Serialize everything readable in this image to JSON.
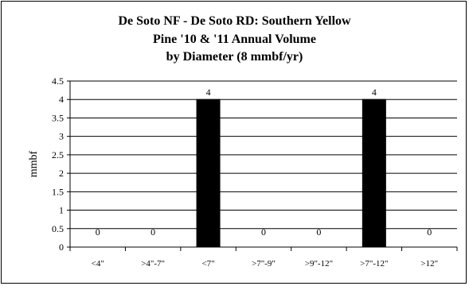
{
  "chart_data": {
    "type": "bar",
    "title_lines": [
      "De Soto NF - De Soto RD: Southern Yellow",
      "Pine '10 & '11 Annual Volume",
      "by Diameter (8 mmbf/yr)"
    ],
    "xlabel": "",
    "ylabel": "mmbf",
    "categories": [
      "<4\"",
      ">4\"-7\"",
      "<7\"",
      ">7\"-9\"",
      ">9\"-12\"",
      ">7\"-12\"",
      ">12\""
    ],
    "values": [
      0,
      0,
      4,
      0,
      0,
      4,
      0
    ],
    "data_labels": [
      "0",
      "0",
      "4",
      "0",
      "0",
      "4",
      "0"
    ],
    "ylim": [
      0,
      4.5
    ],
    "yticks": [
      0,
      0.5,
      1,
      1.5,
      2,
      2.5,
      3,
      3.5,
      4,
      4.5
    ],
    "ytick_labels": [
      "0",
      "0.5",
      "1",
      "1.5",
      "2",
      "2.5",
      "3",
      "3.5",
      "4",
      "4.5"
    ],
    "grid": true,
    "bar_color": "#000000",
    "legend": "none"
  }
}
